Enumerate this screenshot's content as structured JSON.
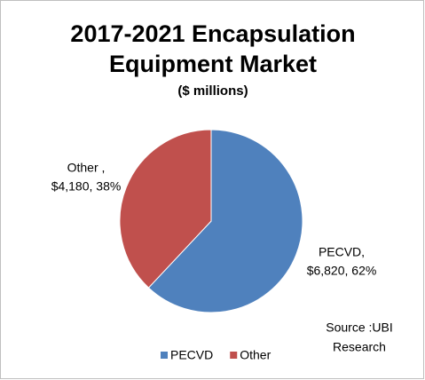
{
  "chart_data": {
    "type": "pie",
    "title": [
      "2017-2021 Encapsulation",
      "Equipment Market"
    ],
    "subtitle": "($ millions)",
    "categories": [
      "PECVD",
      "Other"
    ],
    "values": [
      6820,
      4180
    ],
    "data_label_names": [
      "PECVD,",
      "Other ,"
    ],
    "value_labels": [
      "$6,820, 62%",
      "$4,180, 38%"
    ],
    "colors": [
      "#4f81bd",
      "#c0504d"
    ],
    "annotation": [
      "Source :UBI",
      "Research"
    ],
    "legend": "bottom"
  }
}
